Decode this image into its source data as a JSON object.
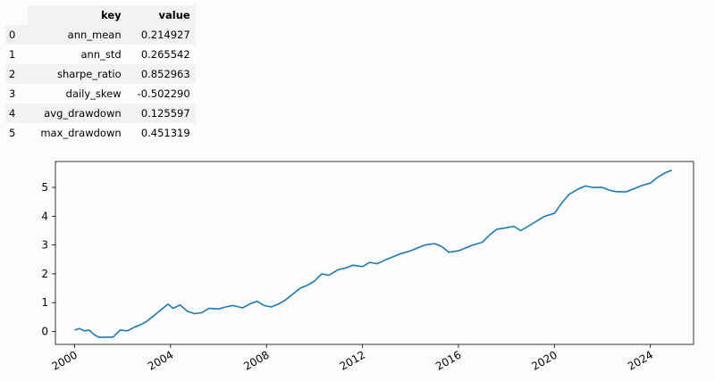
{
  "table": {
    "headers": [
      "key",
      "value"
    ],
    "rows": [
      {
        "index": "0",
        "key": "ann_mean",
        "value": "0.214927"
      },
      {
        "index": "1",
        "key": "ann_std",
        "value": "0.265542"
      },
      {
        "index": "2",
        "key": "sharpe_ratio",
        "value": "0.852963"
      },
      {
        "index": "3",
        "key": "daily_skew",
        "value": "-0.502290"
      },
      {
        "index": "4",
        "key": "avg_drawdown",
        "value": "0.125597"
      },
      {
        "index": "5",
        "key": "max_drawdown",
        "value": "0.451319"
      }
    ]
  },
  "chart_data": {
    "type": "line",
    "xlim": [
      1999.2,
      2025.8
    ],
    "ylim": [
      -0.45,
      5.9
    ],
    "xticks": [
      2000,
      2004,
      2008,
      2012,
      2016,
      2020,
      2024
    ],
    "xtick_labels": [
      "2000",
      "2004",
      "2008",
      "2012",
      "2016",
      "2020",
      "2024"
    ],
    "yticks": [
      0,
      1,
      2,
      3,
      4,
      5
    ],
    "ytick_labels": [
      "0",
      "1",
      "2",
      "3",
      "4",
      "5"
    ],
    "grid": false,
    "line_color": "#1f77b4",
    "series": [
      {
        "x": [
          2000.0,
          2000.2,
          2000.4,
          2000.6,
          2000.8,
          2001.0,
          2001.3,
          2001.6,
          2001.9,
          2002.2,
          2002.5,
          2002.8,
          2003.0,
          2003.3,
          2003.6,
          2003.9,
          2004.1,
          2004.4,
          2004.7,
          2005.0,
          2005.3,
          2005.6,
          2006.0,
          2006.3,
          2006.6,
          2007.0,
          2007.3,
          2007.6,
          2007.9,
          2008.2,
          2008.5,
          2008.8,
          2009.1,
          2009.4,
          2009.7,
          2010.0,
          2010.3,
          2010.6,
          2011.0,
          2011.3,
          2011.6,
          2012.0,
          2012.3,
          2012.6,
          2013.0,
          2013.3,
          2013.6,
          2014.0,
          2014.3,
          2014.6,
          2015.0,
          2015.3,
          2015.6,
          2016.0,
          2016.3,
          2016.6,
          2017.0,
          2017.3,
          2017.6,
          2018.0,
          2018.3,
          2018.6,
          2019.0,
          2019.3,
          2019.6,
          2020.0,
          2020.3,
          2020.6,
          2021.0,
          2021.3,
          2021.6,
          2022.0,
          2022.3,
          2022.6,
          2023.0,
          2023.3,
          2023.6,
          2024.0,
          2024.3,
          2024.6,
          2024.9
        ],
        "y": [
          0.05,
          0.1,
          0.02,
          0.05,
          -0.1,
          -0.2,
          -0.2,
          -0.2,
          0.05,
          0.02,
          0.15,
          0.25,
          0.35,
          0.55,
          0.75,
          0.95,
          0.8,
          0.92,
          0.7,
          0.62,
          0.65,
          0.8,
          0.78,
          0.85,
          0.9,
          0.82,
          0.95,
          1.05,
          0.9,
          0.85,
          0.95,
          1.1,
          1.3,
          1.5,
          1.6,
          1.75,
          2.0,
          1.95,
          2.15,
          2.2,
          2.3,
          2.25,
          2.4,
          2.35,
          2.5,
          2.6,
          2.7,
          2.8,
          2.9,
          3.0,
          3.05,
          2.95,
          2.75,
          2.8,
          2.9,
          3.0,
          3.1,
          3.35,
          3.55,
          3.6,
          3.65,
          3.5,
          3.7,
          3.85,
          4.0,
          4.1,
          4.45,
          4.75,
          4.95,
          5.05,
          5.0,
          5.0,
          4.9,
          4.85,
          4.85,
          4.95,
          5.05,
          5.15,
          5.35,
          5.5,
          5.6
        ]
      }
    ]
  }
}
